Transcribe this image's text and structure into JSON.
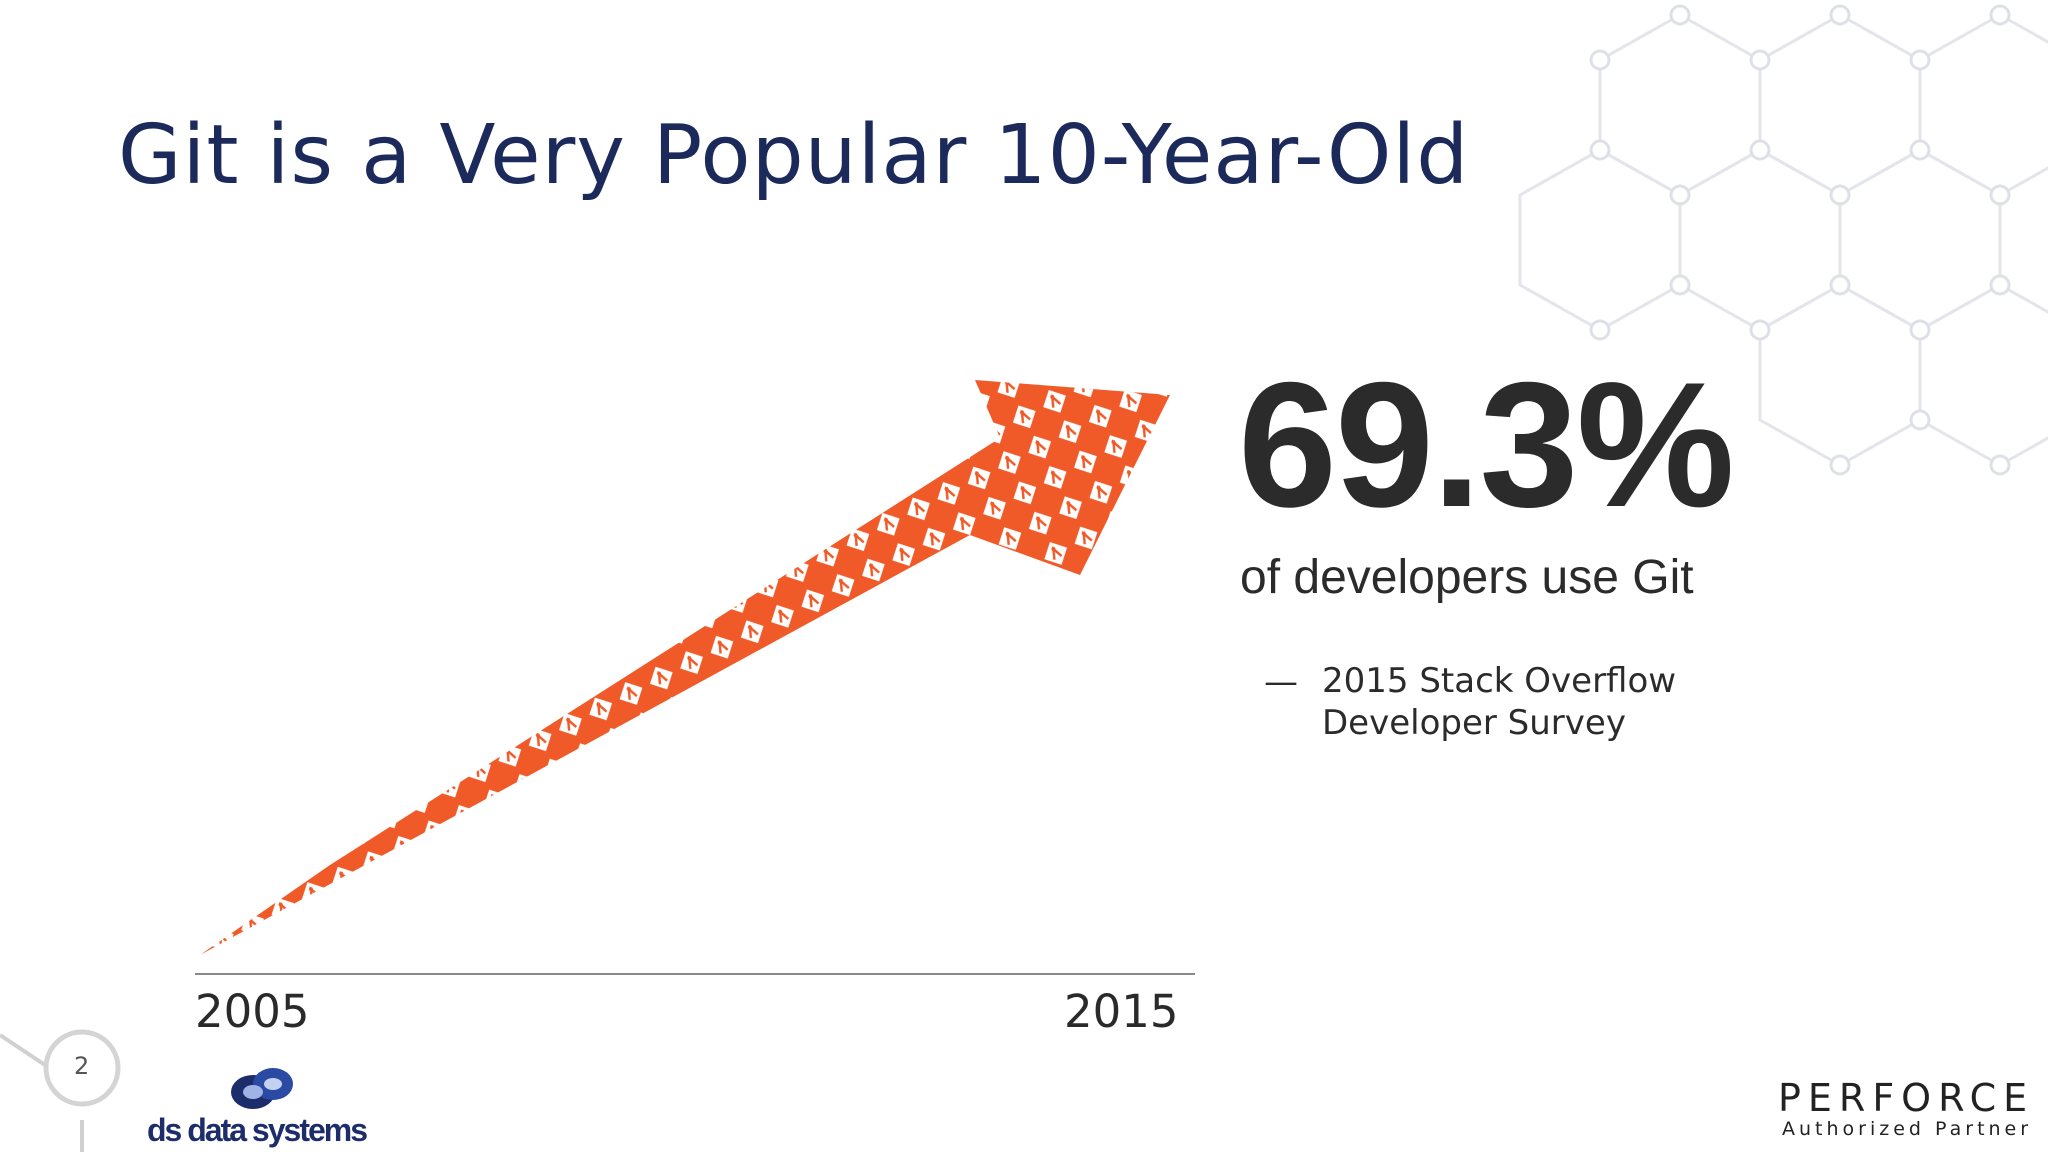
{
  "title": "Git is a Very Popular 10-Year-Old",
  "timeline": {
    "start_label": "2005",
    "end_label": "2015"
  },
  "stat": {
    "value": "69.3%",
    "caption": "of developers use Git",
    "source_dash": "—",
    "source_line1": "2015 Stack Overflow",
    "source_line2": "Developer Survey"
  },
  "footer": {
    "page_number": "2",
    "left_logo_text": "ds data systems",
    "right_logo_text": "PERFORCE",
    "right_logo_subtext": "Authorized Partner"
  },
  "colors": {
    "title": "#1b2a5b",
    "arrow": "#f05a28",
    "text": "#2b2b2b"
  }
}
